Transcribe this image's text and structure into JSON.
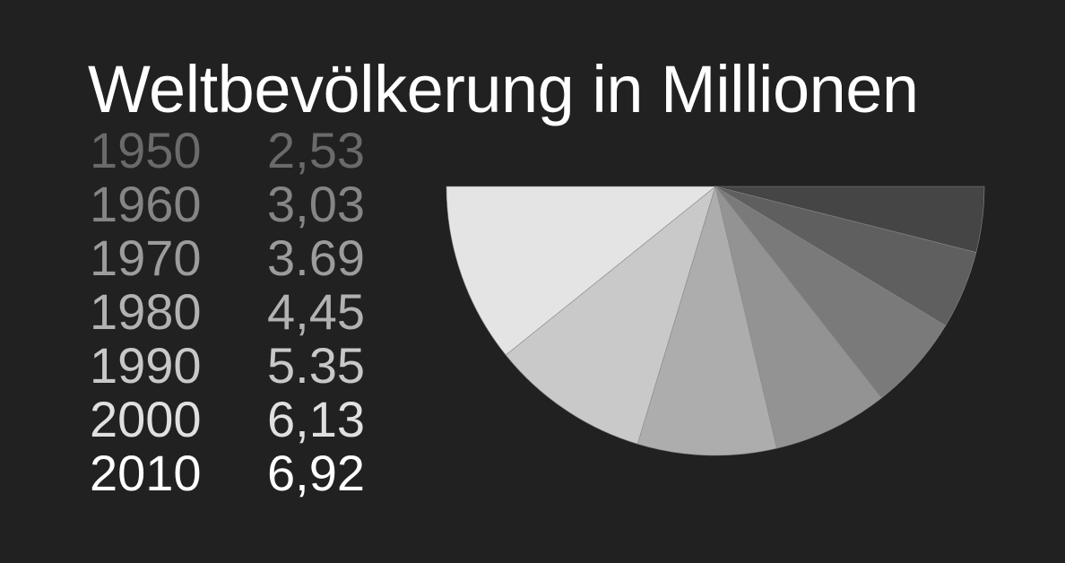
{
  "chart_data": {
    "type": "pie",
    "title": "Weltbevölkerung in Millionen",
    "layout": "half-pie",
    "categories": [
      "1950",
      "1960",
      "1970",
      "1980",
      "1990",
      "2000",
      "2010"
    ],
    "value_labels": [
      "2,53",
      "3,03",
      "3.69",
      "4,45",
      "5.35",
      "6,13",
      "6,92"
    ],
    "values": [
      2.53,
      3.03,
      3.69,
      4.45,
      5.35,
      6.13,
      6.92
    ],
    "slice_colors": [
      "#454545",
      "#5f5f5f",
      "#7a7a7a",
      "#939393",
      "#adadad",
      "#c9c9c9",
      "#e4e4e4"
    ],
    "label_colors": [
      "#6a6a6a",
      "#858585",
      "#9c9c9c",
      "#b2b2b2",
      "#c8c8c8",
      "#e0e0e0",
      "#ffffff"
    ]
  }
}
